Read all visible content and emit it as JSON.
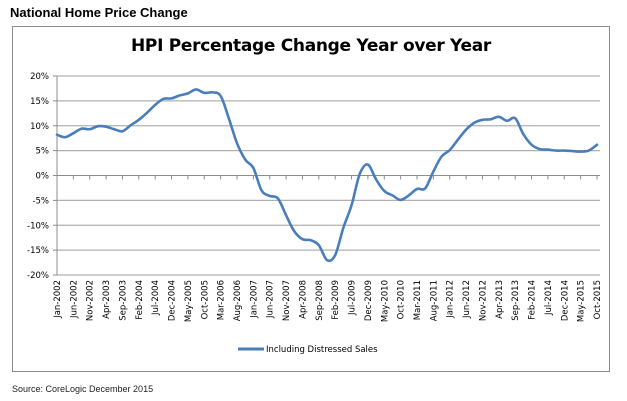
{
  "page": {
    "heading": "National Home Price Change",
    "source": "Source: CoreLogic December 2015"
  },
  "colors": {
    "series_line": "#4a7ebb",
    "gridline": "#b0b0b0",
    "axis": "#8c8c8c"
  },
  "chart_data": {
    "type": "line",
    "title": "HPI Percentage Change Year over Year",
    "xlabel": "",
    "ylabel": "",
    "ylim": [
      -20,
      20
    ],
    "y_ticks": [
      20,
      15,
      10,
      5,
      0,
      -5,
      -10,
      -15,
      -20
    ],
    "y_tick_labels": [
      "20%",
      "15%",
      "10%",
      "5%",
      "0%",
      "-5%",
      "-10%",
      "-15%",
      "-20%"
    ],
    "grid": true,
    "legend_position": "bottom",
    "x_tick_labels": [
      "Jan-2002",
      "Jun-2002",
      "Nov-2002",
      "Apr-2003",
      "Sep-2003",
      "Feb-2004",
      "Jul-2004",
      "Dec-2004",
      "May-2005",
      "Oct-2005",
      "Mar-2006",
      "Aug-2006",
      "Jan-2007",
      "Jun-2007",
      "Nov-2007",
      "Apr-2008",
      "Sep-2008",
      "Feb-2009",
      "Jul-2009",
      "Dec-2009",
      "May-2010",
      "Oct-2010",
      "Mar-2011",
      "Aug-2011",
      "Jan-2012",
      "Jun-2012",
      "Nov-2012",
      "Apr-2013",
      "Sep-2013",
      "Feb-2014",
      "Jul-2014",
      "Dec-2014",
      "May-2015",
      "Oct-2015"
    ],
    "series": [
      {
        "name": "Including Distressed Sales",
        "x_tick_index": [
          0,
          0.5,
          1,
          1.5,
          2,
          2.5,
          3,
          3.5,
          4,
          4.5,
          5,
          5.5,
          6,
          6.5,
          7,
          7.5,
          8,
          8.5,
          9,
          9.5,
          10,
          10.5,
          11,
          11.5,
          12,
          12.5,
          13,
          13.5,
          14,
          14.5,
          15,
          15.5,
          16,
          16.5,
          17,
          17.5,
          18,
          18.5,
          19,
          19.5,
          20,
          20.5,
          21,
          21.5,
          22,
          22.5,
          23,
          23.5,
          24,
          24.5,
          25,
          25.5,
          26,
          26.5,
          27,
          27.5,
          28,
          28.5,
          29,
          29.5,
          30,
          30.5,
          31,
          31.5,
          32,
          32.5,
          33
        ],
        "values": [
          8.2,
          7.7,
          8.5,
          9.4,
          9.3,
          9.9,
          9.8,
          9.3,
          8.9,
          10.1,
          11.2,
          12.6,
          14.2,
          15.4,
          15.5,
          16.1,
          16.5,
          17.3,
          16.6,
          16.7,
          16.0,
          11.5,
          6.5,
          3.2,
          1.5,
          -3.0,
          -4.1,
          -4.6,
          -8.0,
          -11.2,
          -12.8,
          -13.0,
          -14.0,
          -17.0,
          -16.0,
          -10.5,
          -6.0,
          0.3,
          2.2,
          -0.8,
          -3.1,
          -4.0,
          -4.9,
          -4.0,
          -2.7,
          -2.6,
          0.8,
          3.8,
          5.1,
          7.2,
          9.2,
          10.6,
          11.2,
          11.3,
          11.8,
          11.0,
          11.5,
          8.3,
          6.2,
          5.3,
          5.2,
          5.0,
          5.0,
          4.9,
          4.8,
          5.0,
          6.2
        ]
      }
    ]
  }
}
